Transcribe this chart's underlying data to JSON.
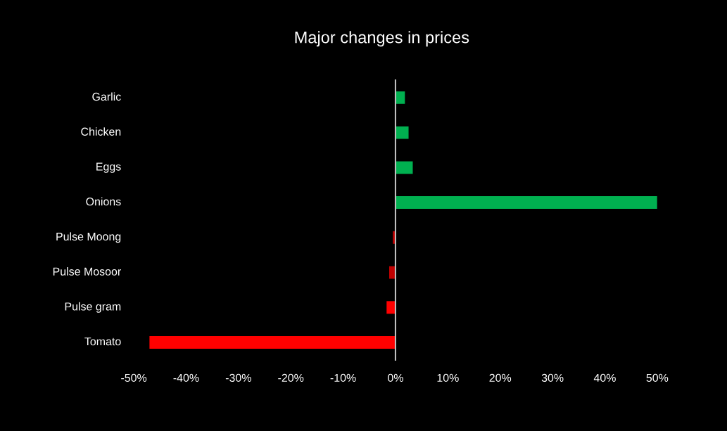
{
  "chart_data": {
    "type": "bar",
    "orientation": "horizontal",
    "title": "Major changes in prices",
    "categories": [
      "Garlic",
      "Chicken",
      "Eggs",
      "Onions",
      "Pulse Moong",
      "Pulse Mosoor",
      "Pulse gram",
      "Tomato"
    ],
    "values": [
      1.8,
      2.5,
      3.3,
      50,
      -0.5,
      -1.2,
      -1.7,
      -47
    ],
    "colors": [
      "#00b050",
      "#00b050",
      "#00b050",
      "#00b050",
      "#c00000",
      "#c00000",
      "#ff0000",
      "#ff0000"
    ],
    "xlim": [
      -50,
      50
    ],
    "xticks": [
      {
        "value": -50,
        "label": "-50%"
      },
      {
        "value": -40,
        "label": "-40%"
      },
      {
        "value": -30,
        "label": "-30%"
      },
      {
        "value": -20,
        "label": "-20%"
      },
      {
        "value": -10,
        "label": "-10%"
      },
      {
        "value": 0,
        "label": "0%"
      },
      {
        "value": 10,
        "label": "10%"
      },
      {
        "value": 20,
        "label": "20%"
      },
      {
        "value": 30,
        "label": "30%"
      },
      {
        "value": 40,
        "label": "40%"
      },
      {
        "value": 50,
        "label": "50%"
      }
    ],
    "relative": false
  }
}
